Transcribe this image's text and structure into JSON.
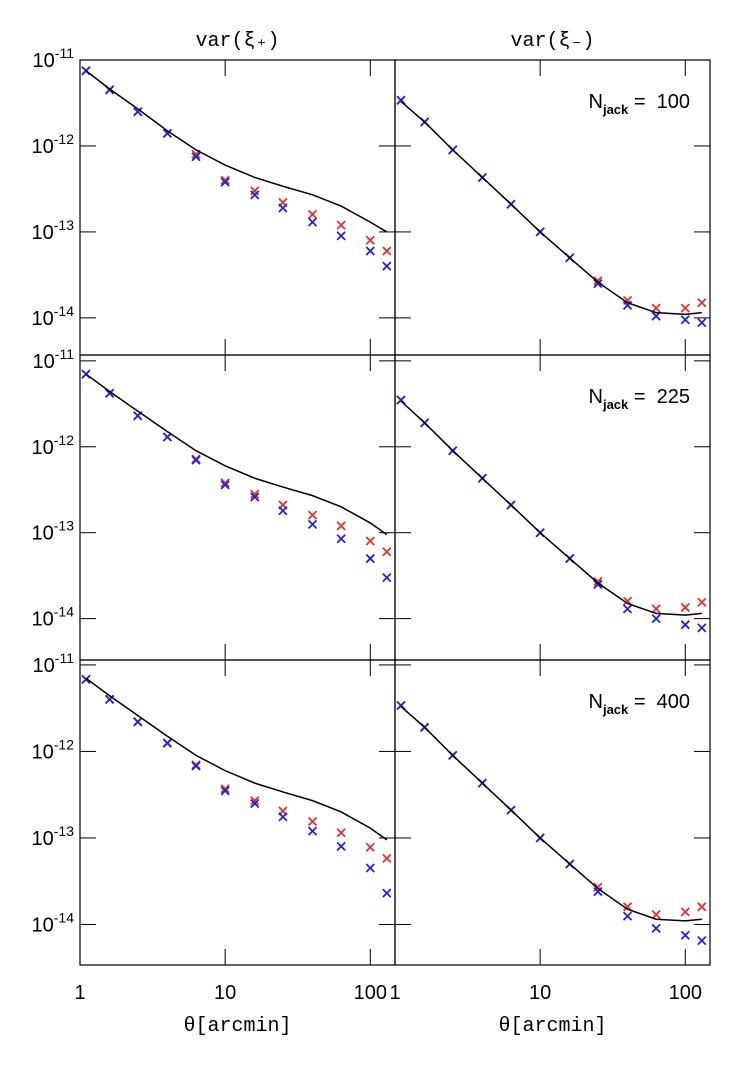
{
  "chart_data": [
    {
      "type": "scatter",
      "title": "var(ξ₊)",
      "xlog": true,
      "ylog": true,
      "xlim": [
        1,
        148
      ],
      "ylim": [
        3.7e-15,
        1e-11
      ],
      "xticks": [
        1,
        10,
        100
      ],
      "yticks": [
        {
          "value": 1e-11,
          "label": "10",
          "exponent": "-11"
        },
        {
          "value": 1e-12,
          "label": "10",
          "exponent": "-12"
        },
        {
          "value": 1e-13,
          "label": "10",
          "exponent": "-13"
        },
        {
          "value": 1e-14,
          "label": "10",
          "exponent": "-14"
        }
      ],
      "x": [
        1.1,
        1.6,
        2.5,
        4,
        6.3,
        10,
        16,
        25,
        40,
        63,
        100,
        130
      ],
      "series": [
        {
          "color": "#e8302a",
          "marker": "x",
          "values": [
            7.5e-12,
            4.5e-12,
            2.5e-12,
            1.4e-12,
            8e-13,
            4e-13,
            3e-13,
            2.2e-13,
            1.6e-13,
            1.2e-13,
            8e-14,
            6e-14
          ]
        },
        {
          "color": "#2222dd",
          "marker": "x",
          "values": [
            7.5e-12,
            4.5e-12,
            2.5e-12,
            1.4e-12,
            7.5e-13,
            3.8e-13,
            2.7e-13,
            1.9e-13,
            1.3e-13,
            9e-14,
            6e-14,
            4e-14
          ]
        },
        {
          "color": "#000000",
          "marker": "line",
          "values": [
            7.5e-12,
            4.6e-12,
            2.7e-12,
            1.5e-12,
            9e-13,
            6e-13,
            4.3e-13,
            3.4e-13,
            2.7e-13,
            2e-13,
            1.3e-13,
            1e-13
          ]
        }
      ]
    },
    {
      "type": "scatter",
      "title": "var(ξ₋)",
      "annotation": {
        "text": "N",
        "sub": "jack",
        "rest": " =  100"
      },
      "xlog": true,
      "ylog": true,
      "xlim": [
        1,
        148
      ],
      "ylim": [
        3.7e-15,
        1e-11
      ],
      "xticks": [
        1,
        10,
        100
      ],
      "yticks": [
        1e-11,
        1e-12,
        1e-13,
        1e-14
      ],
      "x": [
        1.1,
        1.6,
        2.5,
        4,
        6.3,
        10,
        16,
        25,
        40,
        63,
        100,
        130
      ],
      "series": [
        {
          "color": "#e8302a",
          "marker": "x",
          "values": [
            3.4e-12,
            1.9e-12,
            9e-13,
            4.3e-13,
            2.1e-13,
            1e-13,
            5e-14,
            2.7e-14,
            1.6e-14,
            1.3e-14,
            1.3e-14,
            1.5e-14
          ]
        },
        {
          "color": "#2222dd",
          "marker": "x",
          "values": [
            3.4e-12,
            1.9e-12,
            9e-13,
            4.3e-13,
            2.1e-13,
            1e-13,
            5e-14,
            2.5e-14,
            1.4e-14,
            1.05e-14,
            9.5e-15,
            8.8e-15
          ]
        },
        {
          "color": "#000000",
          "marker": "line",
          "values": [
            3.3e-12,
            1.9e-12,
            9e-13,
            4.3e-13,
            2.1e-13,
            1e-13,
            5e-14,
            2.6e-14,
            1.5e-14,
            1.15e-14,
            1.1e-14,
            1.15e-14
          ]
        }
      ]
    },
    {
      "type": "scatter",
      "xlog": true,
      "ylog": true,
      "xlim": [
        1,
        148
      ],
      "ylim": [
        3.3e-15,
        1.17e-11
      ],
      "xticks": [
        1,
        10,
        100
      ],
      "yticks": [
        {
          "value": 1e-11,
          "label": "10",
          "exponent": "-11"
        },
        {
          "value": 1e-12,
          "label": "10",
          "exponent": "-12"
        },
        {
          "value": 1e-13,
          "label": "10",
          "exponent": "-13"
        },
        {
          "value": 1e-14,
          "label": "10",
          "exponent": "-14"
        }
      ],
      "x": [
        1.1,
        1.6,
        2.5,
        4,
        6.3,
        10,
        16,
        25,
        40,
        63,
        100,
        130
      ],
      "series": [
        {
          "color": "#e8302a",
          "marker": "x",
          "values": [
            7e-12,
            4.2e-12,
            2.3e-12,
            1.3e-12,
            7.2e-13,
            3.8e-13,
            2.8e-13,
            2.1e-13,
            1.6e-13,
            1.2e-13,
            8e-14,
            6e-14
          ]
        },
        {
          "color": "#2222dd",
          "marker": "x",
          "values": [
            7e-12,
            4.2e-12,
            2.3e-12,
            1.3e-12,
            7e-13,
            3.6e-13,
            2.6e-13,
            1.8e-13,
            1.25e-13,
            8.5e-14,
            5e-14,
            3e-14
          ]
        },
        {
          "color": "#000000",
          "marker": "line",
          "values": [
            7e-12,
            4.4e-12,
            2.6e-12,
            1.5e-12,
            9e-13,
            6e-13,
            4.3e-13,
            3.4e-13,
            2.7e-13,
            2e-13,
            1.3e-13,
            9.5e-14
          ]
        }
      ]
    },
    {
      "type": "scatter",
      "annotation": {
        "text": "N",
        "sub": "jack",
        "rest": " =  225"
      },
      "xlog": true,
      "ylog": true,
      "xlim": [
        1,
        148
      ],
      "ylim": [
        3.3e-15,
        1.17e-11
      ],
      "xticks": [
        1,
        10,
        100
      ],
      "yticks": [
        1e-11,
        1e-12,
        1e-13,
        1e-14
      ],
      "x": [
        1.1,
        1.6,
        2.5,
        4,
        6.3,
        10,
        16,
        25,
        40,
        63,
        100,
        130
      ],
      "series": [
        {
          "color": "#e8302a",
          "marker": "x",
          "values": [
            3.5e-12,
            1.9e-12,
            9e-13,
            4.3e-13,
            2.1e-13,
            1e-13,
            5e-14,
            2.7e-14,
            1.6e-14,
            1.3e-14,
            1.35e-14,
            1.55e-14
          ]
        },
        {
          "color": "#2222dd",
          "marker": "x",
          "values": [
            3.5e-12,
            1.9e-12,
            9e-13,
            4.3e-13,
            2.1e-13,
            1e-13,
            5e-14,
            2.5e-14,
            1.3e-14,
            1e-14,
            8.5e-15,
            7.8e-15
          ]
        },
        {
          "color": "#000000",
          "marker": "line",
          "values": [
            3.4e-12,
            1.9e-12,
            9e-13,
            4.3e-13,
            2.1e-13,
            1e-13,
            5e-14,
            2.6e-14,
            1.5e-14,
            1.15e-14,
            1.1e-14,
            1.15e-14
          ]
        }
      ]
    },
    {
      "type": "scatter",
      "xlabel": "θ[arcmin]",
      "xlog": true,
      "ylog": true,
      "xlim": [
        1,
        148
      ],
      "ylim": [
        3.4e-15,
        1.14e-11
      ],
      "xticks": [
        1,
        10,
        100
      ],
      "yticks": [
        {
          "value": 1e-11,
          "label": "10",
          "exponent": "-11"
        },
        {
          "value": 1e-12,
          "label": "10",
          "exponent": "-12"
        },
        {
          "value": 1e-13,
          "label": "10",
          "exponent": "-13"
        },
        {
          "value": 1e-14,
          "label": "10",
          "exponent": "-14"
        }
      ],
      "x": [
        1.1,
        1.6,
        2.5,
        4,
        6.3,
        10,
        16,
        25,
        40,
        63,
        100,
        130
      ],
      "series": [
        {
          "color": "#e8302a",
          "marker": "x",
          "values": [
            6.8e-12,
            4e-12,
            2.2e-12,
            1.25e-12,
            7e-13,
            3.7e-13,
            2.7e-13,
            2.05e-13,
            1.55e-13,
            1.15e-13,
            7.8e-14,
            5.8e-14
          ]
        },
        {
          "color": "#2222dd",
          "marker": "x",
          "values": [
            6.8e-12,
            4e-12,
            2.2e-12,
            1.25e-12,
            6.8e-13,
            3.5e-13,
            2.5e-13,
            1.75e-13,
            1.2e-13,
            8e-14,
            4.5e-14,
            2.3e-14
          ]
        },
        {
          "color": "#000000",
          "marker": "line",
          "values": [
            7e-12,
            4.4e-12,
            2.6e-12,
            1.5e-12,
            9e-13,
            6e-13,
            4.3e-13,
            3.4e-13,
            2.7e-13,
            2e-13,
            1.3e-13,
            9.5e-14
          ]
        }
      ]
    },
    {
      "type": "scatter",
      "xlabel": "θ[arcmin]",
      "annotation": {
        "text": "N",
        "sub": "jack",
        "rest": " =  400"
      },
      "xlog": true,
      "ylog": true,
      "xlim": [
        1,
        148
      ],
      "ylim": [
        3.4e-15,
        1.14e-11
      ],
      "xticks": [
        1,
        10,
        100
      ],
      "yticks": [
        1e-11,
        1e-12,
        1e-13,
        1e-14
      ],
      "x": [
        1.1,
        1.6,
        2.5,
        4,
        6.3,
        10,
        16,
        25,
        40,
        63,
        100,
        130
      ],
      "series": [
        {
          "color": "#e8302a",
          "marker": "x",
          "values": [
            3.4e-12,
            1.9e-12,
            9e-13,
            4.3e-13,
            2.1e-13,
            1e-13,
            5e-14,
            2.7e-14,
            1.6e-14,
            1.3e-14,
            1.4e-14,
            1.6e-14
          ]
        },
        {
          "color": "#2222dd",
          "marker": "x",
          "values": [
            3.4e-12,
            1.9e-12,
            9e-13,
            4.3e-13,
            2.1e-13,
            1e-13,
            5e-14,
            2.4e-14,
            1.25e-14,
            9e-15,
            7.5e-15,
            6.5e-15
          ]
        },
        {
          "color": "#000000",
          "marker": "line",
          "values": [
            3.3e-12,
            1.9e-12,
            9e-13,
            4.3e-13,
            2.1e-13,
            1e-13,
            5e-14,
            2.6e-14,
            1.5e-14,
            1.15e-14,
            1.1e-14,
            1.15e-14
          ]
        }
      ]
    }
  ]
}
